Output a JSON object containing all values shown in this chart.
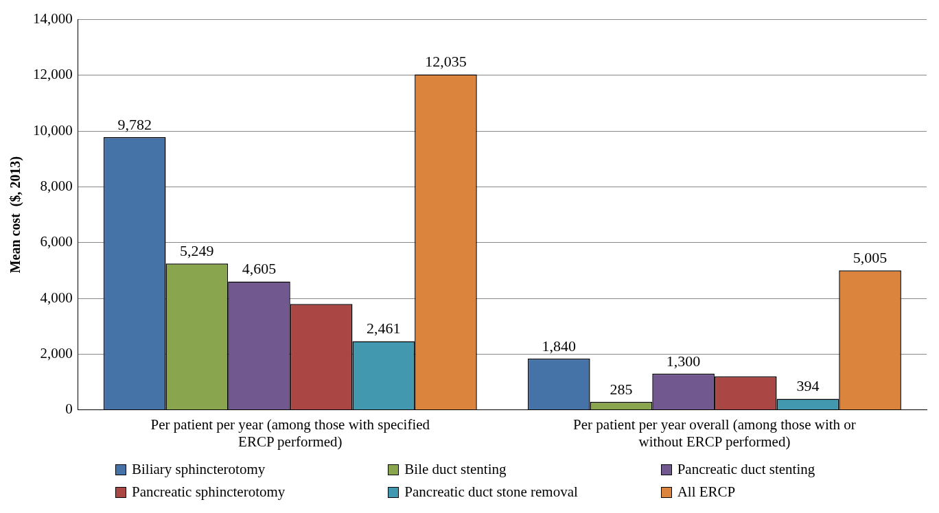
{
  "chart_data": {
    "type": "bar",
    "ylabel": "Mean cost  ($, 2013)",
    "categories": [
      "Per patient per year (among those with specified ERCP performed)",
      "Per patient per year overall (among those with or without ERCP performed)"
    ],
    "series": [
      {
        "name": "Biliary sphincterotomy",
        "color": "#4572a7",
        "values": [
          9782,
          1840
        ],
        "value_labels": [
          "9,782",
          "1,840"
        ]
      },
      {
        "name": "Bile duct stenting",
        "color": "#89a54e",
        "values": [
          5249,
          285
        ],
        "value_labels": [
          "5,249",
          "285"
        ]
      },
      {
        "name": "Pancreatic duct stenting",
        "color": "#71588f",
        "values": [
          4605,
          1300
        ],
        "value_labels": [
          "4,605",
          "1,300"
        ]
      },
      {
        "name": "Pancreatic sphincterotomy",
        "color": "#aa4643",
        "values": [
          3800,
          1200
        ],
        "value_labels": [
          null,
          null
        ]
      },
      {
        "name": "Pancreatic duct stone removal",
        "color": "#4198af",
        "values": [
          2461,
          394
        ],
        "value_labels": [
          "2,461",
          "394"
        ]
      },
      {
        "name": "All ERCP",
        "color": "#db843d",
        "values": [
          12035,
          5005
        ],
        "value_labels": [
          "12,035",
          "5,005"
        ]
      }
    ],
    "ylim": [
      0,
      14000
    ],
    "yticks": [
      {
        "value": 0,
        "label": "0"
      },
      {
        "value": 2000,
        "label": "2,000"
      },
      {
        "value": 4000,
        "label": "4,000"
      },
      {
        "value": 6000,
        "label": "6,000"
      },
      {
        "value": 8000,
        "label": "8,000"
      },
      {
        "value": 10000,
        "label": "10,000"
      },
      {
        "value": 12000,
        "label": "12,000"
      },
      {
        "value": 14000,
        "label": "14,000"
      }
    ],
    "grid": "y",
    "legend": "bottom"
  }
}
